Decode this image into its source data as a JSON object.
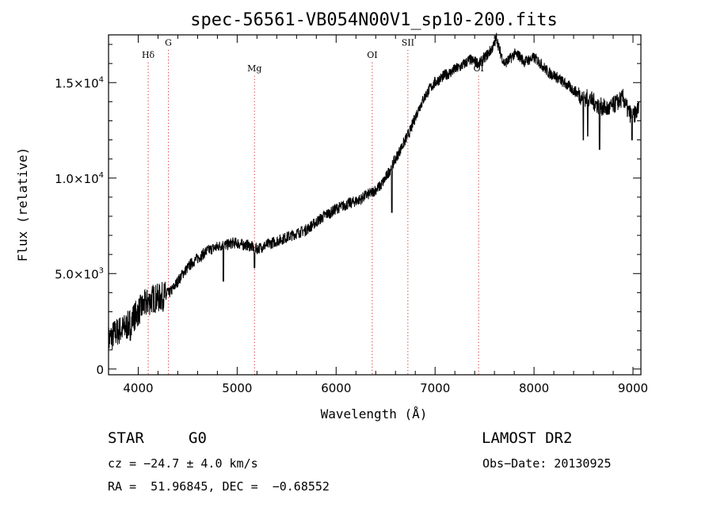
{
  "chart_data": {
    "type": "line",
    "title": "spec-56561-VB054N00V1_sp10-200.fits",
    "xlabel": "Wavelength (Å)",
    "ylabel": "Flux (relative)",
    "xlim": [
      3700,
      9080
    ],
    "ylim": [
      -300,
      17500
    ],
    "x_ticks": [
      4000,
      5000,
      6000,
      7000,
      8000,
      9000
    ],
    "x_tick_labels": [
      "4000",
      "5000",
      "6000",
      "7000",
      "8000",
      "9000"
    ],
    "y_ticks": [
      0,
      5000,
      10000,
      15000
    ],
    "y_tick_labels": [
      {
        "mantissa": "0",
        "exp": ""
      },
      {
        "mantissa": "5.0×10",
        "exp": "3"
      },
      {
        "mantissa": "1.0×10",
        "exp": "4"
      },
      {
        "mantissa": "1.5×10",
        "exp": "4"
      }
    ],
    "spectral_lines": [
      {
        "label": "Hδ",
        "x": 4101,
        "label_y": 16300
      },
      {
        "label": "G",
        "x": 4305,
        "label_y": 16950
      },
      {
        "label": "Mg",
        "x": 5175,
        "label_y": 15600
      },
      {
        "label": "OI",
        "x": 6365,
        "label_y": 16300
      },
      {
        "label": "SII",
        "x": 6725,
        "label_y": 16950
      },
      {
        "label": "OI",
        "x": 7440,
        "label_y": 15600
      }
    ],
    "spectral_line_color": "#cc0000",
    "series": [
      {
        "line_color": "#000000",
        "noise_amplitude": 300,
        "x": [
          3700,
          3750,
          3800,
          3850,
          3900,
          3950,
          4000,
          4050,
          4100,
          4150,
          4200,
          4250,
          4300,
          4350,
          4400,
          4450,
          4500,
          4550,
          4600,
          4650,
          4700,
          4750,
          4800,
          4850,
          4900,
          4950,
          5000,
          5050,
          5100,
          5150,
          5200,
          5250,
          5300,
          5350,
          5400,
          5450,
          5500,
          5550,
          5600,
          5650,
          5700,
          5750,
          5800,
          5850,
          5900,
          5950,
          6000,
          6050,
          6100,
          6150,
          6200,
          6250,
          6300,
          6350,
          6400,
          6450,
          6500,
          6550,
          6600,
          6650,
          6700,
          6750,
          6800,
          6850,
          6900,
          6950,
          7000,
          7050,
          7100,
          7150,
          7200,
          7250,
          7300,
          7350,
          7400,
          7450,
          7500,
          7550,
          7600,
          7620,
          7650,
          7700,
          7750,
          7800,
          7850,
          7900,
          7950,
          8000,
          8050,
          8100,
          8150,
          8200,
          8250,
          8300,
          8350,
          8400,
          8450,
          8500,
          8550,
          8600,
          8650,
          8700,
          8750,
          8800,
          8850,
          8900,
          8950,
          9000,
          9050
        ],
        "y": [
          1500,
          1800,
          2000,
          2100,
          2300,
          2700,
          3000,
          3300,
          3500,
          3700,
          3700,
          3800,
          3900,
          4200,
          4600,
          5000,
          5300,
          5600,
          5800,
          6000,
          6200,
          6300,
          6400,
          6500,
          6500,
          6600,
          6600,
          6500,
          6500,
          6400,
          6300,
          6400,
          6500,
          6600,
          6700,
          6800,
          6900,
          7000,
          7100,
          7200,
          7300,
          7500,
          7700,
          7900,
          8100,
          8200,
          8400,
          8500,
          8600,
          8700,
          8800,
          8900,
          9100,
          9200,
          9400,
          9600,
          10000,
          10500,
          11000,
          11500,
          12000,
          12500,
          13200,
          13800,
          14300,
          14700,
          15000,
          15200,
          15400,
          15500,
          15700,
          15800,
          16000,
          16200,
          16100,
          16000,
          16300,
          16600,
          17000,
          17400,
          16700,
          16000,
          16200,
          16500,
          16400,
          16100,
          16200,
          16300,
          16100,
          15800,
          15500,
          15400,
          15200,
          15000,
          14800,
          14600,
          14400,
          14200,
          14200,
          14000,
          13800,
          13700,
          13600,
          13800,
          14000,
          14200,
          13500,
          13200,
          13600
        ],
        "dips": [
          {
            "x": 3920,
            "y": 1500
          },
          {
            "x": 4860,
            "y": 4600
          },
          {
            "x": 5175,
            "y": 5300
          },
          {
            "x": 6563,
            "y": 8200
          },
          {
            "x": 8498,
            "y": 12000
          },
          {
            "x": 8542,
            "y": 12200
          },
          {
            "x": 8662,
            "y": 11500
          },
          {
            "x": 8990,
            "y": 12000
          }
        ]
      }
    ]
  },
  "info": {
    "object_class": "STAR",
    "subclass": "G0",
    "survey": "LAMOST DR2",
    "cz": "cz = −24.7 ± 4.0 km/s",
    "obs_date": "Obs−Date: 20130925",
    "coords": "RA =  51.96845, DEC =  −0.68552"
  }
}
